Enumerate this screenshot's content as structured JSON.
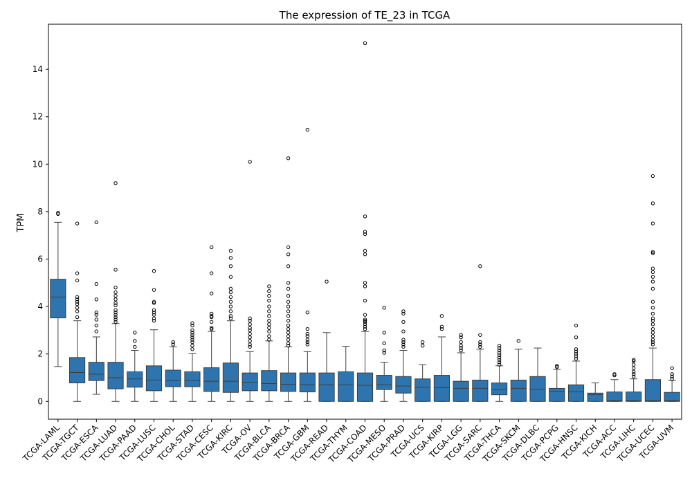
{
  "colors": {
    "box_fill": "#2e75b0",
    "box_edge": "#3d3d3d",
    "axis": "#000000",
    "outlier_edge": "#000000"
  },
  "chart_data": {
    "type": "boxplot",
    "title": "The expression of TE_23 in TCGA",
    "xlabel": "",
    "ylabel": "TPM",
    "ylim": [
      -0.75,
      15.9
    ],
    "yticks": [
      0,
      2,
      4,
      6,
      8,
      10,
      12,
      14
    ],
    "grid": false,
    "legend": "none",
    "categories": [
      "TCGA-LAML",
      "TCGA-TGCT",
      "TCGA-ESCA",
      "TCGA-LUAD",
      "TCGA-PAAD",
      "TCGA-LUSC",
      "TCGA-CHOL",
      "TCGA-STAD",
      "TCGA-CESC",
      "TCGA-KIRC",
      "TCGA-OV",
      "TCGA-BLCA",
      "TCGA-BRCA",
      "TCGA-GBM",
      "TCGA-READ",
      "TCGA-THYM",
      "TCGA-COAD",
      "TCGA-MESO",
      "TCGA-PRAD",
      "TCGA-UCS",
      "TCGA-KIRP",
      "TCGA-LGG",
      "TCGA-SARC",
      "TCGA-THCA",
      "TCGA-SKCM",
      "TCGA-DLBC",
      "TCGA-PCPG",
      "TCGA-HNSC",
      "TCGA-KICH",
      "TCGA-ACC",
      "TCGA-LIHC",
      "TCGA-UCEC",
      "TCGA-UVM"
    ],
    "boxes": [
      {
        "whislo": 1.47,
        "q1": 3.52,
        "med": 4.4,
        "q3": 5.15,
        "whishi": 7.55,
        "fliers": [
          7.9,
          7.95
        ]
      },
      {
        "whislo": 0,
        "q1": 0.78,
        "med": 1.22,
        "q3": 1.85,
        "whishi": 3.4,
        "fliers": [
          3.55,
          3.8,
          3.95,
          4.1,
          4.2,
          4.3,
          4.4,
          5.1,
          5.4,
          7.5
        ]
      },
      {
        "whislo": 0.3,
        "q1": 0.88,
        "med": 1.15,
        "q3": 1.65,
        "whishi": 2.72,
        "fliers": [
          2.95,
          3.2,
          3.45,
          3.65,
          3.75,
          4.3,
          4.95,
          7.55
        ]
      },
      {
        "whislo": 0,
        "q1": 0.53,
        "med": 1.0,
        "q3": 1.65,
        "whishi": 3.28,
        "fliers": [
          3.35,
          3.45,
          3.55,
          3.65,
          3.75,
          3.85,
          4.05,
          4.15,
          4.3,
          4.45,
          4.6,
          4.8,
          5.55,
          9.2
        ]
      },
      {
        "whislo": 0,
        "q1": 0.6,
        "med": 0.95,
        "q3": 1.25,
        "whishi": 2.15,
        "fliers": [
          2.3,
          2.55,
          2.9
        ]
      },
      {
        "whislo": 0,
        "q1": 0.45,
        "med": 0.9,
        "q3": 1.5,
        "whishi": 3.02,
        "fliers": [
          3.4,
          3.5,
          3.65,
          3.75,
          3.85,
          4.15,
          4.2,
          4.7,
          5.5
        ]
      },
      {
        "whislo": 0,
        "q1": 0.62,
        "med": 0.88,
        "q3": 1.32,
        "whishi": 2.3,
        "fliers": [
          2.4,
          2.5
        ]
      },
      {
        "whislo": 0,
        "q1": 0.62,
        "med": 0.88,
        "q3": 1.25,
        "whishi": 2.02,
        "fliers": [
          2.2,
          2.35,
          2.5,
          2.6,
          2.7,
          2.8,
          2.9,
          3.0,
          3.2,
          3.3
        ]
      },
      {
        "whislo": 0,
        "q1": 0.42,
        "med": 0.85,
        "q3": 1.42,
        "whishi": 2.95,
        "fliers": [
          3.05,
          3.1,
          3.35,
          3.55,
          3.6,
          3.7,
          4.55,
          5.4,
          6.5
        ]
      },
      {
        "whislo": 0,
        "q1": 0.38,
        "med": 0.85,
        "q3": 1.62,
        "whishi": 3.4,
        "fliers": [
          3.5,
          3.6,
          3.8,
          4.0,
          4.2,
          4.4,
          4.6,
          4.75,
          5.25,
          5.7,
          6.05,
          6.35
        ]
      },
      {
        "whislo": 0,
        "q1": 0.45,
        "med": 0.8,
        "q3": 1.2,
        "whishi": 2.1,
        "fliers": [
          2.3,
          2.4,
          2.55,
          2.7,
          2.85,
          3.0,
          3.1,
          3.25,
          3.4,
          3.5,
          10.1
        ]
      },
      {
        "whislo": 0,
        "q1": 0.45,
        "med": 0.75,
        "q3": 1.3,
        "whishi": 2.55,
        "fliers": [
          2.6,
          2.75,
          2.95,
          3.1,
          3.25,
          3.4,
          3.6,
          3.8,
          4.0,
          4.25,
          4.45,
          4.65,
          4.85
        ]
      },
      {
        "whislo": 0,
        "q1": 0.42,
        "med": 0.72,
        "q3": 1.2,
        "whishi": 2.3,
        "fliers": [
          2.35,
          2.45,
          2.6,
          2.75,
          2.9,
          3.05,
          3.2,
          3.4,
          3.6,
          3.8,
          4.0,
          4.2,
          4.45,
          4.75,
          5.0,
          5.7,
          6.2,
          6.5,
          10.25
        ]
      },
      {
        "whislo": 0,
        "q1": 0.4,
        "med": 0.7,
        "q3": 1.2,
        "whishi": 2.1,
        "fliers": [
          2.4,
          2.5,
          2.6,
          2.75,
          2.85,
          3.05,
          3.75,
          11.45
        ]
      },
      {
        "whislo": 0,
        "q1": 0,
        "med": 0.7,
        "q3": 1.2,
        "whishi": 2.9,
        "fliers": [
          5.05
        ]
      },
      {
        "whislo": 0,
        "q1": 0,
        "med": 0.7,
        "q3": 1.25,
        "whishi": 2.32,
        "fliers": []
      },
      {
        "whislo": 0,
        "q1": 0,
        "med": 0.68,
        "q3": 1.2,
        "whishi": 2.95,
        "fliers": [
          3.05,
          3.15,
          3.25,
          3.35,
          3.4,
          3.45,
          3.65,
          4.25,
          4.85,
          5.0,
          6.2,
          6.35,
          7.05,
          7.15,
          7.8,
          15.1
        ]
      },
      {
        "whislo": 0,
        "q1": 0.5,
        "med": 0.7,
        "q3": 1.1,
        "whishi": 1.65,
        "fliers": [
          2.05,
          2.15,
          2.45,
          2.9,
          3.95
        ]
      },
      {
        "whislo": 0,
        "q1": 0.35,
        "med": 0.65,
        "q3": 1.05,
        "whishi": 2.15,
        "fliers": [
          2.3,
          2.4,
          2.5,
          2.6,
          2.95,
          3.35,
          3.7,
          3.8
        ]
      },
      {
        "whislo": 0,
        "q1": 0,
        "med": 0.6,
        "q3": 0.95,
        "whishi": 1.55,
        "fliers": [
          2.35,
          2.5
        ]
      },
      {
        "whislo": 0,
        "q1": 0,
        "med": 0.58,
        "q3": 1.1,
        "whishi": 2.72,
        "fliers": [
          3.05,
          3.15,
          3.6
        ]
      },
      {
        "whislo": 0,
        "q1": 0,
        "med": 0.55,
        "q3": 0.85,
        "whishi": 2.05,
        "fliers": [
          2.15,
          2.25,
          2.35,
          2.5,
          2.7,
          2.8
        ]
      },
      {
        "whislo": 0,
        "q1": 0,
        "med": 0.55,
        "q3": 0.9,
        "whishi": 2.2,
        "fliers": [
          2.3,
          2.4,
          2.5,
          2.8,
          5.7
        ]
      },
      {
        "whislo": 0,
        "q1": 0.28,
        "med": 0.5,
        "q3": 0.78,
        "whishi": 1.5,
        "fliers": [
          1.55,
          1.65,
          1.75,
          1.85,
          1.95,
          2.05,
          2.15,
          2.25,
          2.35
        ]
      },
      {
        "whislo": 0,
        "q1": 0,
        "med": 0.55,
        "q3": 0.9,
        "whishi": 2.2,
        "fliers": [
          2.55
        ]
      },
      {
        "whislo": 0,
        "q1": 0,
        "med": 0.52,
        "q3": 1.05,
        "whishi": 2.25,
        "fliers": []
      },
      {
        "whislo": 0,
        "q1": 0,
        "med": 0.42,
        "q3": 0.55,
        "whishi": 1.35,
        "fliers": [
          1.45,
          1.5
        ]
      },
      {
        "whislo": 0,
        "q1": 0,
        "med": 0.4,
        "q3": 0.7,
        "whishi": 1.7,
        "fliers": [
          1.8,
          1.9,
          2.0,
          2.1,
          2.2,
          2.7,
          3.2
        ]
      },
      {
        "whislo": 0,
        "q1": 0,
        "med": 0.28,
        "q3": 0.35,
        "whishi": 0.78,
        "fliers": []
      },
      {
        "whislo": 0,
        "q1": 0,
        "med": 0.05,
        "q3": 0.4,
        "whishi": 0.92,
        "fliers": [
          1.1,
          1.15
        ]
      },
      {
        "whislo": 0,
        "q1": 0,
        "med": 0.05,
        "q3": 0.4,
        "whishi": 0.95,
        "fliers": [
          1.05,
          1.15,
          1.25,
          1.4,
          1.55,
          1.7,
          1.75
        ]
      },
      {
        "whislo": 0,
        "q1": 0,
        "med": 0.05,
        "q3": 0.92,
        "whishi": 2.25,
        "fliers": [
          2.4,
          2.5,
          2.6,
          2.75,
          2.9,
          3.05,
          3.25,
          3.4,
          3.5,
          3.7,
          3.95,
          4.2,
          4.75,
          5.05,
          5.25,
          5.45,
          5.6,
          6.25,
          6.3,
          7.5,
          8.35,
          9.5
        ]
      },
      {
        "whislo": 0,
        "q1": 0,
        "med": 0.05,
        "q3": 0.38,
        "whishi": 0.88,
        "fliers": [
          0.95,
          1.05,
          1.15,
          1.4
        ]
      }
    ]
  }
}
